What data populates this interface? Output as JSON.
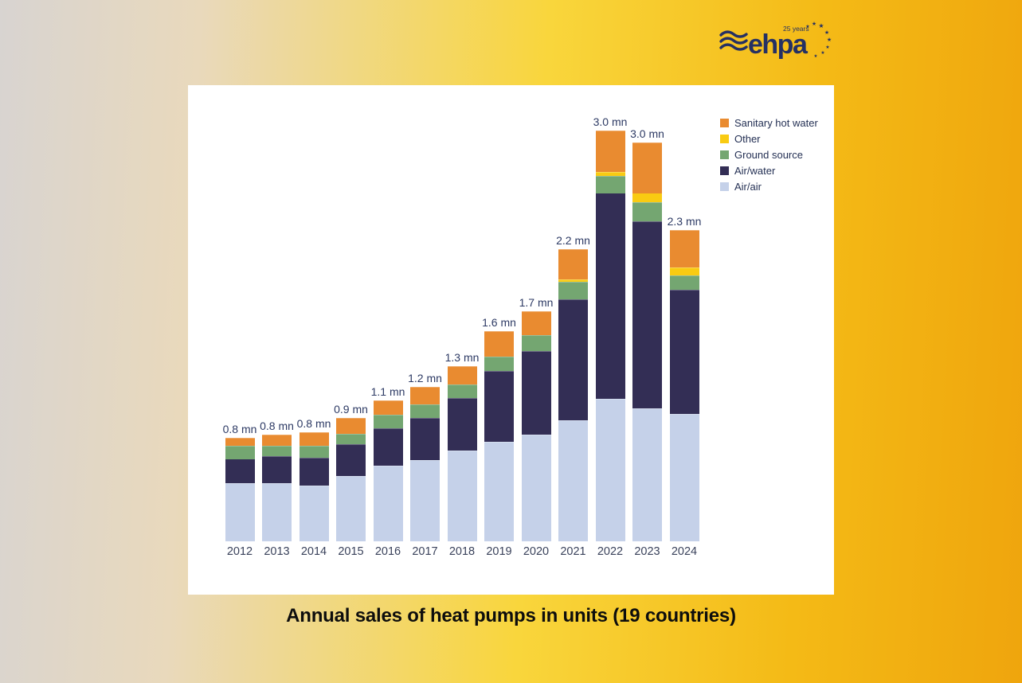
{
  "page": {
    "caption": "Annual sales of heat pumps in units (19 countries)"
  },
  "logo": {
    "brand": "ehpa",
    "anniversary": "25 years",
    "color": "#253063"
  },
  "legend": [
    {
      "label": "Sanitary hot water",
      "color": "#e98b30"
    },
    {
      "label": "Other",
      "color": "#f9cb12"
    },
    {
      "label": "Ground source",
      "color": "#74a671"
    },
    {
      "label": "Air/water",
      "color": "#332e55"
    },
    {
      "label": "Air/air",
      "color": "#c5d1e9"
    }
  ],
  "chart_data": {
    "type": "bar",
    "stacked": true,
    "unit": "million units",
    "grid": false,
    "legend_position": "top-right",
    "categories": [
      "2012",
      "2013",
      "2014",
      "2015",
      "2016",
      "2017",
      "2018",
      "2019",
      "2020",
      "2021",
      "2022",
      "2023",
      "2024"
    ],
    "total_labels": [
      "0.8 mn",
      "0.8 mn",
      "0.8 mn",
      "0.9 mn",
      "1.1 mn",
      "1.2 mn",
      "1.3 mn",
      "1.6 mn",
      "1.7 mn",
      "2.2 mn",
      "3.0 mn",
      "3.0 mn",
      "2.3 mn"
    ],
    "series": [
      {
        "name": "Air/air",
        "color": "#c5d1e9",
        "values": [
          0.44,
          0.44,
          0.42,
          0.49,
          0.57,
          0.61,
          0.68,
          0.75,
          0.8,
          0.91,
          1.07,
          1.0,
          0.96
        ]
      },
      {
        "name": "Air/water",
        "color": "#332e55",
        "values": [
          0.18,
          0.2,
          0.21,
          0.24,
          0.28,
          0.32,
          0.4,
          0.53,
          0.63,
          0.91,
          1.55,
          1.41,
          0.93
        ]
      },
      {
        "name": "Ground source",
        "color": "#74a671",
        "values": [
          0.1,
          0.08,
          0.09,
          0.08,
          0.1,
          0.1,
          0.1,
          0.11,
          0.12,
          0.13,
          0.13,
          0.14,
          0.11
        ]
      },
      {
        "name": "Other",
        "color": "#f9cb12",
        "values": [
          0,
          0,
          0,
          0,
          0,
          0,
          0,
          0,
          0,
          0.02,
          0.03,
          0.07,
          0.06
        ]
      },
      {
        "name": "Sanitary hot water",
        "color": "#e98b30",
        "values": [
          0.06,
          0.08,
          0.1,
          0.12,
          0.11,
          0.13,
          0.14,
          0.19,
          0.18,
          0.23,
          0.31,
          0.38,
          0.28
        ]
      }
    ]
  }
}
